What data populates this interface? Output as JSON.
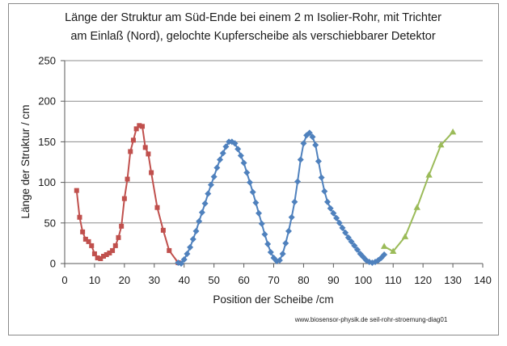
{
  "chart_data": {
    "type": "line",
    "title_lines": [
      "Länge der Struktur am Süd-Ende bei einem 2 m  Isolier-Rohr, mit Trichter",
      "am Einlaß (Nord),  gelochte Kupferscheibe als verschiebbarer Detektor"
    ],
    "xlabel": "Position der Scheibe /cm",
    "ylabel": "Länge der Struktur  / cm",
    "footer": "www.biosensor-physik.de seil-rohr-stroemung-diag01",
    "xlim": [
      0,
      140
    ],
    "ylim": [
      0,
      250
    ],
    "x_ticks": [
      0,
      10,
      20,
      30,
      40,
      50,
      60,
      70,
      80,
      90,
      100,
      110,
      120,
      130,
      140
    ],
    "y_ticks": [
      0,
      50,
      100,
      150,
      200,
      250
    ],
    "grid": "horizontal",
    "legend": "none",
    "series": [
      {
        "color": "#c0504d",
        "marker": "square",
        "points": [
          [
            4,
            90
          ],
          [
            5,
            57
          ],
          [
            6,
            39
          ],
          [
            7,
            30
          ],
          [
            8,
            27
          ],
          [
            9,
            22
          ],
          [
            10,
            12
          ],
          [
            11,
            7
          ],
          [
            12,
            6
          ],
          [
            13,
            9
          ],
          [
            14,
            11
          ],
          [
            15,
            13
          ],
          [
            16,
            16
          ],
          [
            17,
            22
          ],
          [
            18,
            32
          ],
          [
            19,
            46
          ],
          [
            20,
            80
          ],
          [
            21,
            104
          ],
          [
            22,
            138
          ],
          [
            23,
            152
          ],
          [
            24,
            166
          ],
          [
            25,
            170
          ],
          [
            26,
            169
          ],
          [
            27,
            143
          ],
          [
            28,
            135
          ],
          [
            29,
            112
          ],
          [
            31,
            69
          ],
          [
            33,
            41
          ],
          [
            35,
            16
          ],
          [
            38,
            1
          ]
        ]
      },
      {
        "color": "#4f81bd",
        "marker": "diamond",
        "points": [
          [
            38,
            1
          ],
          [
            39,
            0
          ],
          [
            40,
            5
          ],
          [
            41,
            12
          ],
          [
            42,
            20
          ],
          [
            43,
            30
          ],
          [
            44,
            40
          ],
          [
            45,
            52
          ],
          [
            46,
            63
          ],
          [
            47,
            74
          ],
          [
            48,
            86
          ],
          [
            49,
            97
          ],
          [
            50,
            107
          ],
          [
            51,
            118
          ],
          [
            52,
            128
          ],
          [
            53,
            136
          ],
          [
            54,
            144
          ],
          [
            55,
            150
          ],
          [
            56,
            150
          ],
          [
            57,
            148
          ],
          [
            58,
            141
          ],
          [
            59,
            133
          ],
          [
            60,
            124
          ],
          [
            61,
            112
          ],
          [
            62,
            100
          ],
          [
            63,
            88
          ],
          [
            64,
            75
          ],
          [
            65,
            62
          ],
          [
            66,
            49
          ],
          [
            67,
            36
          ],
          [
            68,
            24
          ],
          [
            69,
            14
          ],
          [
            70,
            7
          ],
          [
            71,
            3
          ],
          [
            72,
            4
          ],
          [
            73,
            12
          ],
          [
            74,
            25
          ],
          [
            75,
            40
          ],
          [
            76,
            57
          ],
          [
            77,
            76
          ],
          [
            78,
            101
          ],
          [
            79,
            128
          ],
          [
            80,
            148
          ],
          [
            81,
            158
          ],
          [
            82,
            161
          ],
          [
            83,
            156
          ],
          [
            84,
            146
          ],
          [
            85,
            126
          ],
          [
            86,
            106
          ],
          [
            87,
            89
          ],
          [
            88,
            76
          ],
          [
            89,
            68
          ],
          [
            90,
            62
          ],
          [
            91,
            56
          ],
          [
            92,
            50
          ],
          [
            93,
            44
          ],
          [
            94,
            38
          ],
          [
            95,
            32
          ],
          [
            96,
            27
          ],
          [
            97,
            22
          ],
          [
            98,
            17
          ],
          [
            99,
            12
          ],
          [
            100,
            8
          ],
          [
            101,
            4
          ],
          [
            102,
            2
          ],
          [
            103,
            1
          ],
          [
            104,
            2
          ],
          [
            105,
            4
          ],
          [
            106,
            7
          ],
          [
            107,
            11
          ]
        ]
      },
      {
        "color": "#9bbb59",
        "marker": "triangle",
        "points": [
          [
            107,
            21
          ],
          [
            110,
            15
          ],
          [
            114,
            33
          ],
          [
            118,
            69
          ],
          [
            122,
            109
          ],
          [
            126,
            146
          ],
          [
            130,
            162
          ]
        ]
      }
    ]
  }
}
